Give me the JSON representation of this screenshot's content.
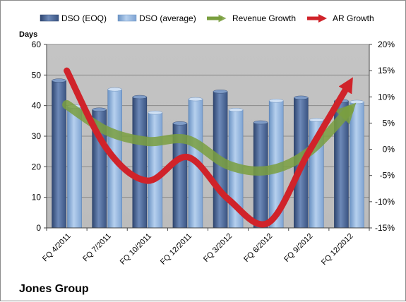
{
  "chart_data": {
    "type": "bar",
    "ylabel": "Days",
    "ylim": [
      0,
      60
    ],
    "y2lim": [
      -15,
      20
    ],
    "yticks": [
      0,
      10,
      20,
      30,
      40,
      50,
      60
    ],
    "y2ticks": [
      "-15%",
      "-10%",
      "-5%",
      "0%",
      "5%",
      "10%",
      "15%",
      "20%"
    ],
    "y2values": [
      -15,
      -10,
      -5,
      0,
      5,
      10,
      15,
      20
    ],
    "categories": [
      "FQ 4/2011",
      "FQ 7/2011",
      "FQ 10/2011",
      "FQ 12/2011",
      "FQ 3/2012",
      "FQ 6/2012",
      "FQ 9/2012",
      "FQ 12/2012"
    ],
    "series": [
      {
        "name": "DSO (EOQ)",
        "kind": "bar",
        "axis": "left",
        "values": [
          48.2,
          38.7,
          42.8,
          34.2,
          44.6,
          34.5,
          42.6,
          41.5
        ]
      },
      {
        "name": "DSO (average)",
        "kind": "bar",
        "axis": "left",
        "values": [
          39.7,
          45.3,
          37.7,
          42.1,
          38.6,
          41.6,
          35.3,
          41.2
        ]
      },
      {
        "name": "Revenue Growth",
        "kind": "line",
        "axis": "right",
        "values": [
          8.5,
          3.5,
          1.5,
          1.8,
          -3.0,
          -4.0,
          -0.5,
          7.5
        ]
      },
      {
        "name": "AR Growth",
        "kind": "line",
        "axis": "right",
        "values": [
          15.0,
          0.0,
          -6.0,
          -1.5,
          -9.5,
          -14.0,
          -0.5,
          12.5
        ]
      }
    ],
    "colors": {
      "dso_eoq": "#4f6b98",
      "dso_average": "#8fb4de",
      "revenue_growth": "#7a9f3f",
      "ar_growth": "#d0232a",
      "plot_bg": "#c0c0c0"
    },
    "grid": true,
    "legend": "top"
  },
  "company_name": "Jones Group"
}
